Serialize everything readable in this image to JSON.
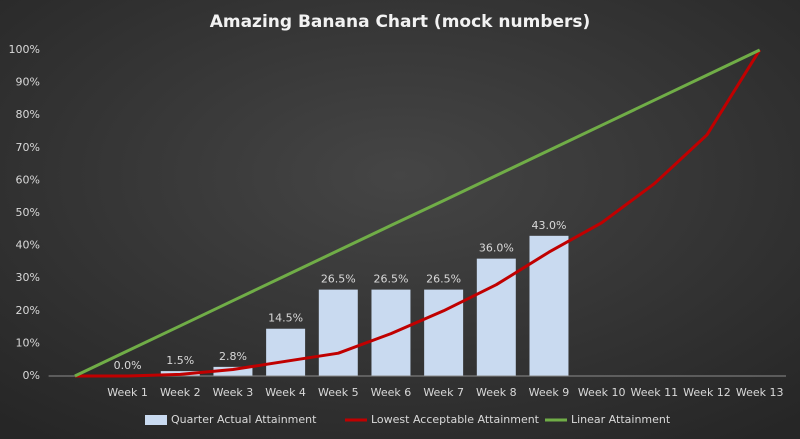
{
  "chart_data": {
    "type": "bar",
    "title": "Amazing Banana Chart (mock numbers)",
    "categories": [
      null,
      "Week 1",
      "Week 2",
      "Week 3",
      "Week 4",
      "Week 5",
      "Week 6",
      "Week 7",
      "Week 8",
      "Week 9",
      "Week 10",
      "Week 11",
      "Week 12",
      "Week 13"
    ],
    "series": [
      {
        "name": "Quarter Actual Attainment",
        "type": "bar",
        "color": "#c9daf0",
        "values": [
          null,
          0,
          1.5,
          2.8,
          14.5,
          26.5,
          26.5,
          26.5,
          36,
          43,
          null,
          null,
          null,
          null
        ],
        "value_labels": [
          null,
          "0.0%",
          "1.5%",
          "2.8%",
          "14.5%",
          "26.5%",
          "26.5%",
          "26.5%",
          "36.0%",
          "43.0%",
          null,
          null,
          null,
          null
        ]
      },
      {
        "name": "Lowest Acceptable Attainment",
        "type": "line",
        "color": "#c00000",
        "values": [
          0,
          0,
          0.5,
          2,
          4.5,
          7,
          13,
          20,
          28,
          38,
          47,
          59,
          74,
          100
        ]
      },
      {
        "name": "Linear Attainment",
        "type": "line",
        "color": "#70ad47",
        "values": [
          0,
          7.7,
          15.4,
          23.1,
          30.8,
          38.5,
          46.2,
          53.8,
          61.5,
          69.2,
          76.9,
          84.6,
          92.3,
          100
        ]
      }
    ],
    "ylim": [
      0,
      100
    ],
    "yticks": [
      {
        "value": 0,
        "label": "0%"
      },
      {
        "value": 10,
        "label": "10%"
      },
      {
        "value": 20,
        "label": "20%"
      },
      {
        "value": 30,
        "label": "30%"
      },
      {
        "value": 40,
        "label": "40%"
      },
      {
        "value": 50,
        "label": "50%"
      },
      {
        "value": 60,
        "label": "60%"
      },
      {
        "value": 70,
        "label": "70%"
      },
      {
        "value": 80,
        "label": "80%"
      },
      {
        "value": 90,
        "label": "90%"
      },
      {
        "value": 100,
        "label": "100%"
      }
    ],
    "grid": false,
    "legend": "bottom"
  }
}
